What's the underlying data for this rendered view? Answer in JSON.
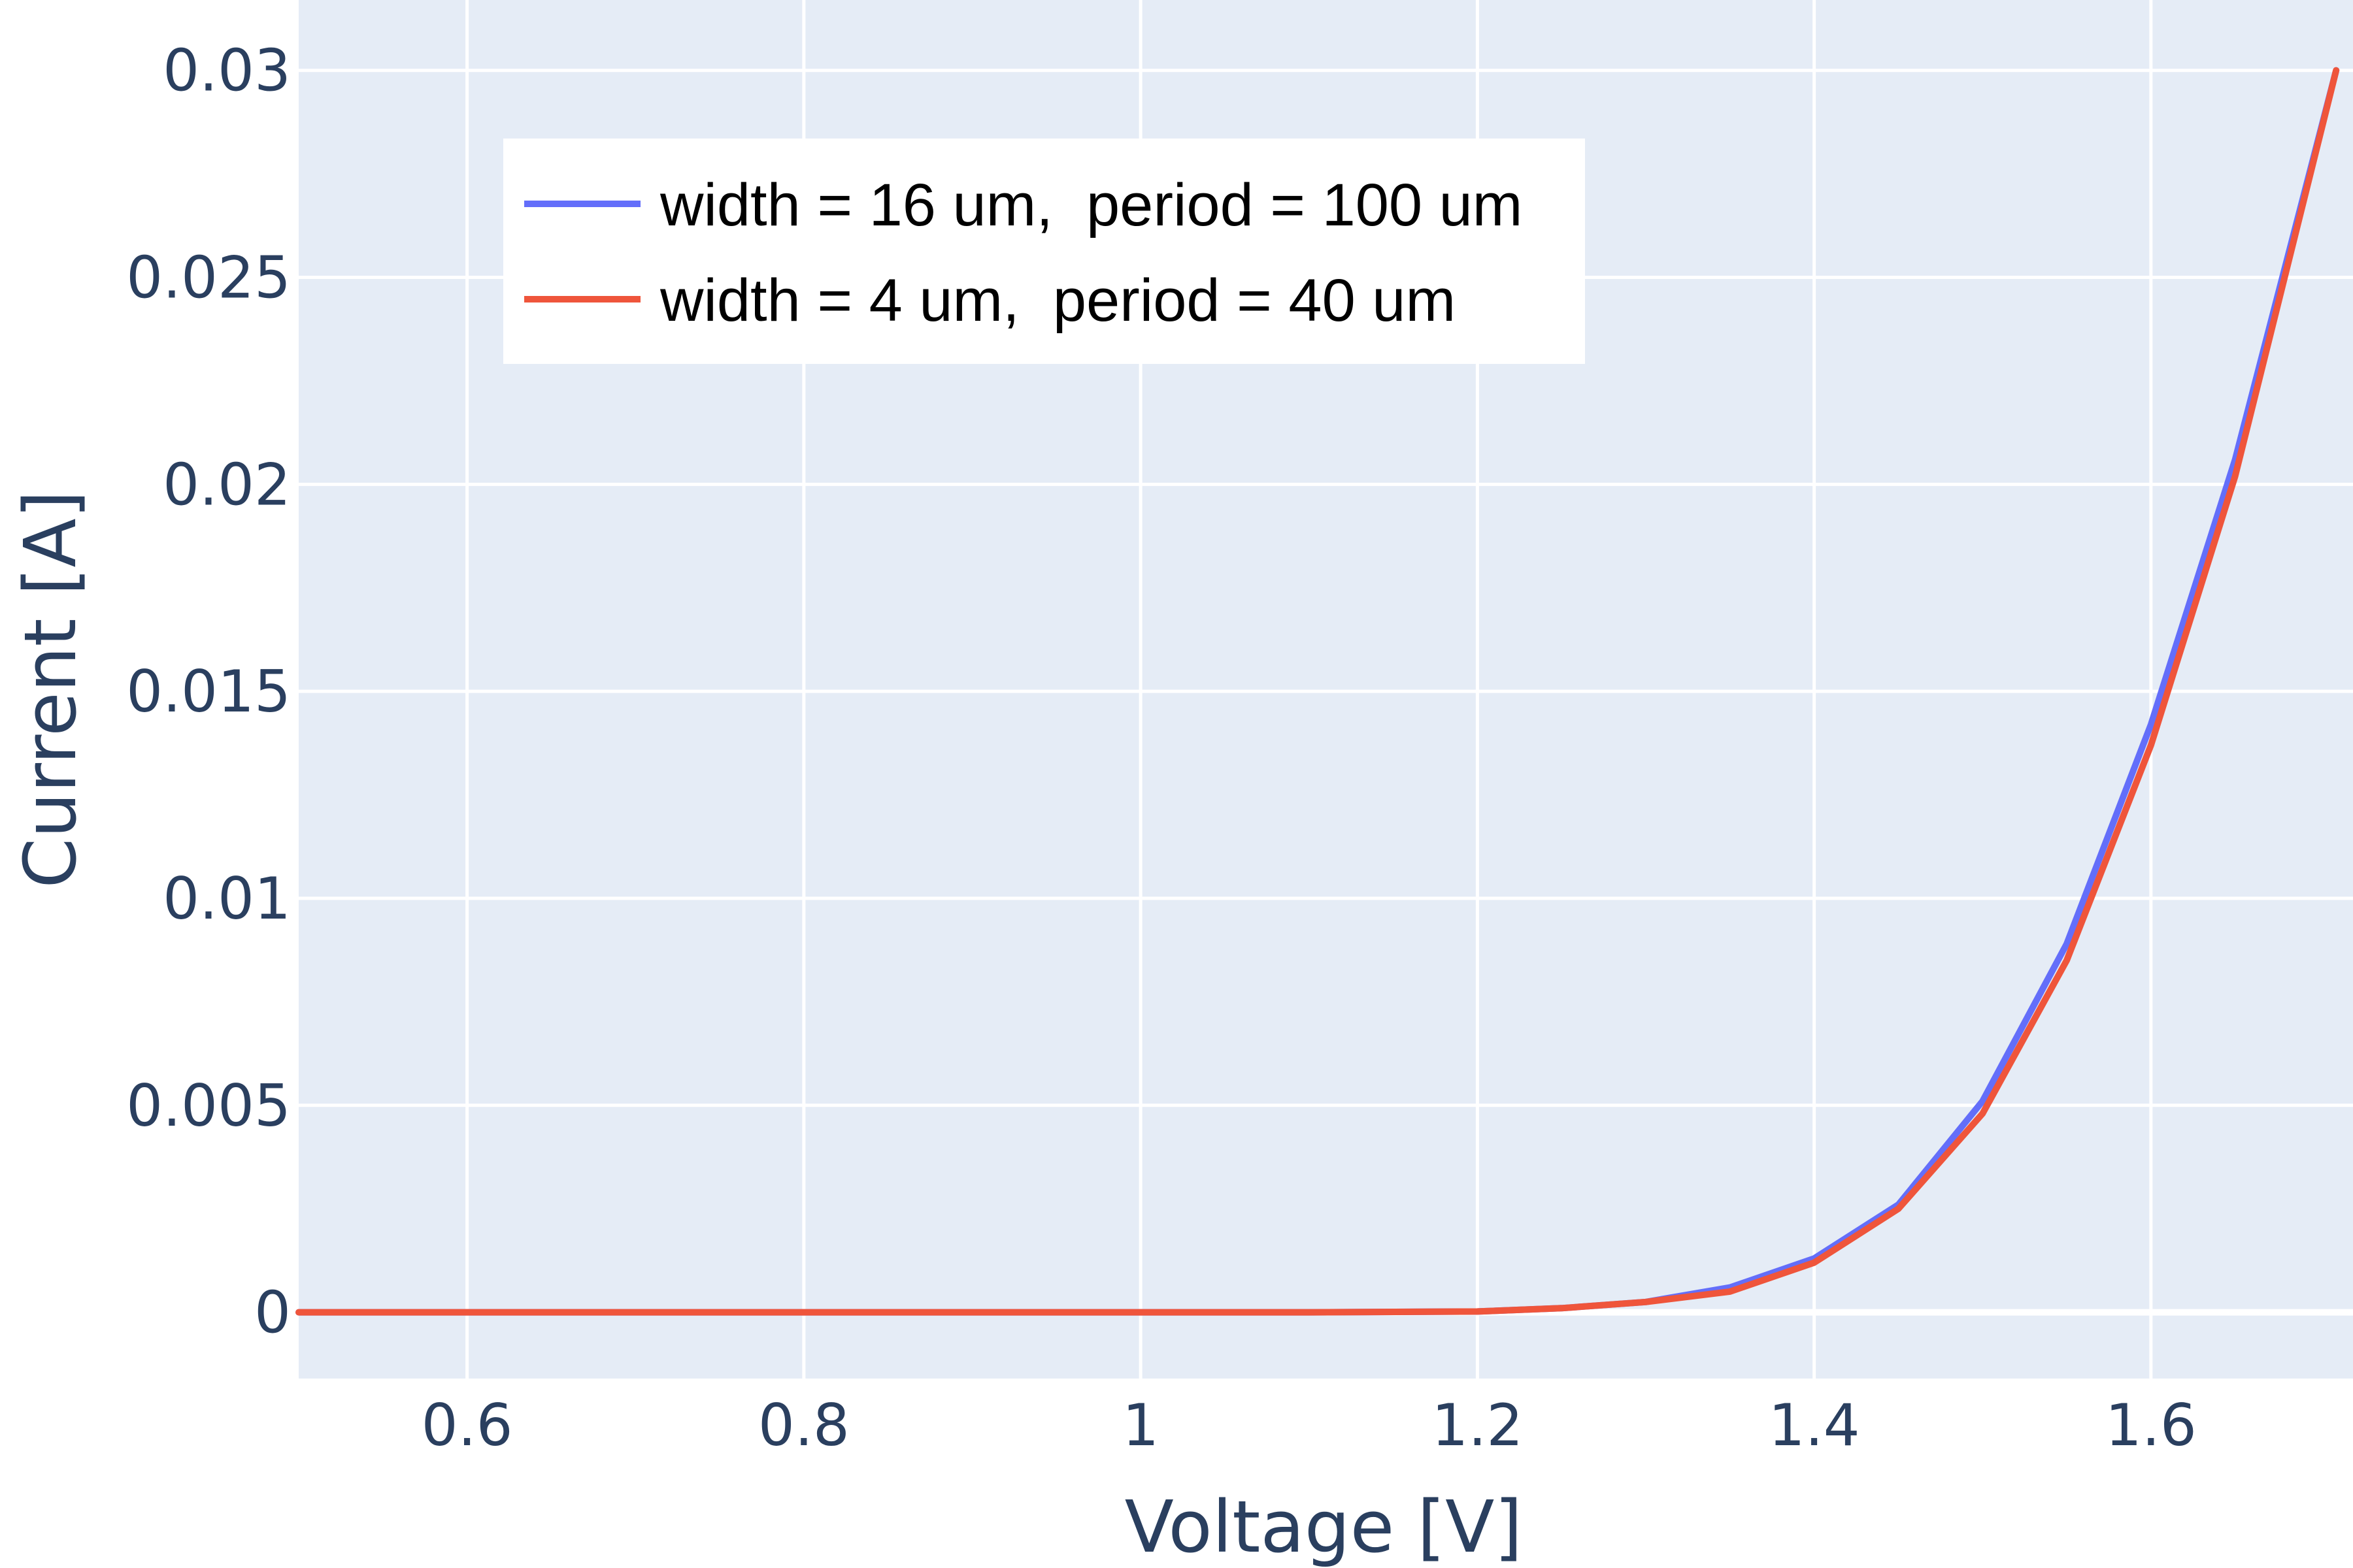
{
  "chart_data": {
    "type": "line",
    "xlabel": "Voltage [V]",
    "ylabel": "Current [A]",
    "xlim": [
      0.5,
      1.72
    ],
    "ylim": [
      -0.0016,
      0.0317
    ],
    "x_ticks": [
      0.6,
      0.8,
      1.0,
      1.2,
      1.4,
      1.6
    ],
    "x_tick_labels": [
      "0.6",
      "0.8",
      "1",
      "1.2",
      "1.4",
      "1.6"
    ],
    "y_ticks": [
      0,
      0.005,
      0.01,
      0.015,
      0.02,
      0.025,
      0.03
    ],
    "y_tick_labels": [
      "0",
      "0.005",
      "0.01",
      "0.015",
      "0.02",
      "0.025",
      "0.03"
    ],
    "grid": true,
    "legend_position": "top-left",
    "colors": {
      "plot_bg": "#e5ecf6",
      "grid": "#ffffff",
      "text": "#2a3f5f"
    },
    "series": [
      {
        "name": "width = 16 um,  period = 100 um",
        "color": "#636efa",
        "x": [
          0.5,
          0.6,
          0.7,
          0.8,
          0.9,
          1.0,
          1.1,
          1.2,
          1.25,
          1.3,
          1.35,
          1.4,
          1.45,
          1.5,
          1.55,
          1.6,
          1.65,
          1.71
        ],
        "y": [
          0,
          0,
          0,
          0,
          0,
          0,
          0,
          2e-05,
          0.0001,
          0.00025,
          0.0006,
          0.0013,
          0.0026,
          0.0051,
          0.0089,
          0.0142,
          0.0206,
          0.03
        ]
      },
      {
        "name": "width = 4 um,  period = 40 um",
        "color": "#ef553b",
        "x": [
          0.5,
          0.6,
          0.7,
          0.8,
          0.9,
          1.0,
          1.1,
          1.2,
          1.25,
          1.3,
          1.35,
          1.4,
          1.45,
          1.5,
          1.55,
          1.6,
          1.65,
          1.71
        ],
        "y": [
          0,
          0,
          0,
          0,
          0,
          0,
          0,
          2e-05,
          0.0001,
          0.00025,
          0.0005,
          0.0012,
          0.0025,
          0.0048,
          0.0085,
          0.0137,
          0.0202,
          0.03
        ]
      }
    ]
  }
}
